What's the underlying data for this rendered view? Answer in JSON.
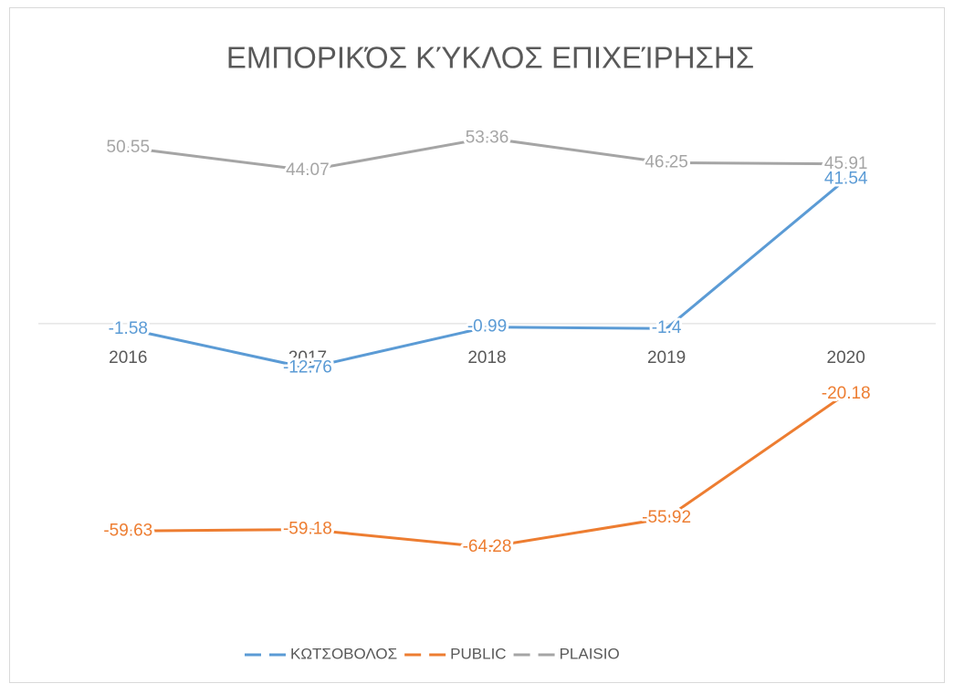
{
  "chart_data": {
    "type": "line",
    "title": "ΕΜΠΟΡΙΚΌΣ ΚΎΚΛΟΣ ΕΠΙΧΕΊΡΗΣΗΣ",
    "categories": [
      "2016",
      "2017",
      "2018",
      "2019",
      "2020"
    ],
    "series": [
      {
        "name": "ΚΩΤΣΟΒΟΛΟΣ",
        "color": "#5b9bd5",
        "values": [
          -1.58,
          -12.76,
          -0.99,
          -1.4,
          41.54
        ]
      },
      {
        "name": "PUBLIC",
        "color": "#ed7d31",
        "values": [
          -59.63,
          -59.18,
          -64.28,
          -55.92,
          -20.18
        ]
      },
      {
        "name": "PLAISIO",
        "color": "#a5a5a5",
        "values": [
          50.55,
          44.07,
          53.36,
          46.25,
          45.91
        ]
      }
    ],
    "ylim": [
      -80,
      60
    ],
    "grid": false,
    "legend": "bottom"
  }
}
